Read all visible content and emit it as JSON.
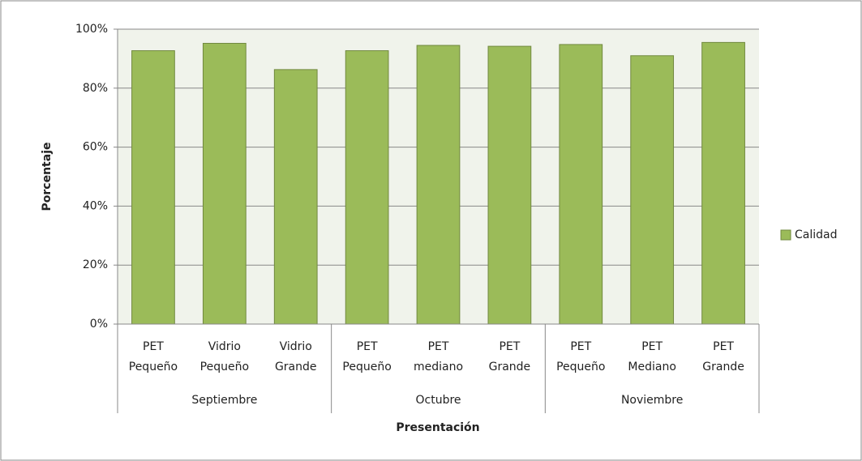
{
  "chart_data": {
    "type": "bar",
    "y_axis_label": "Porcentaje",
    "x_axis_label": "Presentación",
    "categories": [
      [
        "PET",
        "Pequeño"
      ],
      [
        "Vidrio",
        "Pequeño"
      ],
      [
        "Vidrio",
        "Grande"
      ],
      [
        "PET",
        "Pequeño"
      ],
      [
        "PET",
        "mediano"
      ],
      [
        "PET",
        "Grande"
      ],
      [
        "PET",
        "Pequeño"
      ],
      [
        "PET",
        "Mediano"
      ],
      [
        "PET",
        "Grande"
      ]
    ],
    "category_groups": [
      "Septiembre",
      "Octubre",
      "Noviembre"
    ],
    "series": [
      {
        "name": "Calidad",
        "color": "#9bbb59",
        "values": [
          92.7,
          95.2,
          86.3,
          92.7,
          94.5,
          94.2,
          94.8,
          91.0,
          95.5
        ]
      }
    ],
    "ylim": [
      0,
      100
    ],
    "yticks": [
      {
        "value": 0,
        "label": "0%"
      },
      {
        "value": 20,
        "label": "20%"
      },
      {
        "value": 40,
        "label": "40%"
      },
      {
        "value": 60,
        "label": "60%"
      },
      {
        "value": 80,
        "label": "80%"
      },
      {
        "value": 100,
        "label": "100%"
      }
    ],
    "grid": true,
    "legend": "right"
  }
}
